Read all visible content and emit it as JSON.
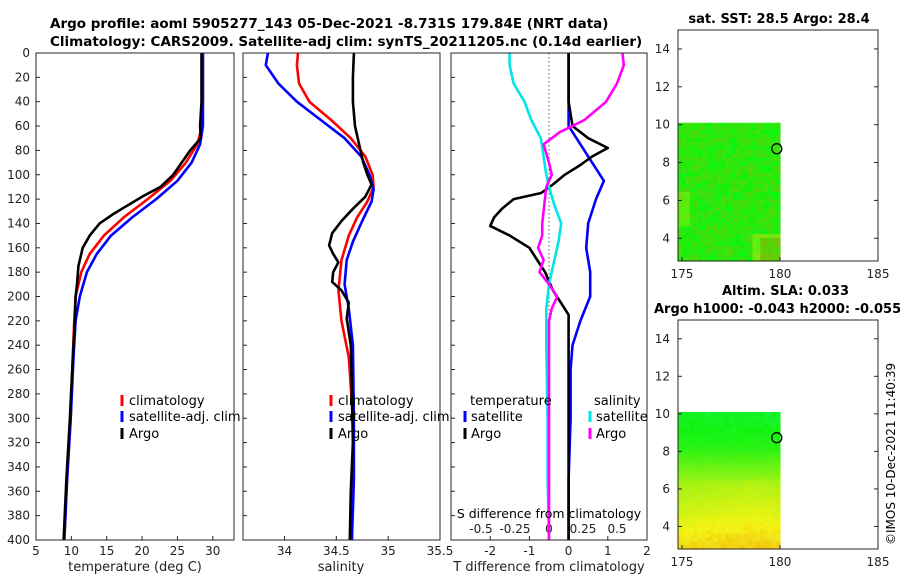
{
  "header": {
    "title_line1": "Argo profile: aoml 5905277_143 05-Dec-2021 -8.731S 179.84E (NRT data)",
    "title_line2": "Climatology: CARS2009. Satellite-adj clim: synTS_20211205.nc (0.14d earlier)"
  },
  "timestamp": "©IMOS 10-Dec-2021 11:40:39",
  "colors": {
    "climatology": "#ff0000",
    "satellite": "#0000ff",
    "argo": "#000000",
    "sal_satellite": "#00e5e5",
    "sal_argo": "#ff00ff"
  },
  "chart_data": [
    {
      "id": "temperature",
      "type": "line",
      "xlabel": "temperature (deg C)",
      "ylabel": "",
      "xlim": [
        5,
        33
      ],
      "ylim": [
        0,
        400
      ],
      "y_reversed": true,
      "xticks": [
        5,
        10,
        15,
        20,
        25,
        30
      ],
      "yticks": [
        0,
        20,
        40,
        60,
        80,
        100,
        120,
        140,
        160,
        180,
        200,
        220,
        240,
        260,
        280,
        300,
        320,
        340,
        360,
        380,
        400
      ],
      "legend": [
        "climatology",
        "satellite-adj. clim",
        "Argo"
      ],
      "series": [
        {
          "name": "climatology",
          "color": "#ff0000",
          "points": [
            [
              28.6,
              0
            ],
            [
              28.6,
              20
            ],
            [
              28.6,
              40
            ],
            [
              28.5,
              60
            ],
            [
              27.8,
              75
            ],
            [
              26.2,
              90
            ],
            [
              24.0,
              105
            ],
            [
              20.8,
              120
            ],
            [
              17.4,
              135
            ],
            [
              14.6,
              150
            ],
            [
              12.6,
              165
            ],
            [
              11.4,
              180
            ],
            [
              10.6,
              200
            ],
            [
              10.4,
              220
            ],
            [
              10.2,
              250
            ],
            [
              9.9,
              300
            ],
            [
              9.4,
              350
            ],
            [
              9.0,
              400
            ]
          ]
        },
        {
          "name": "satellite-adj. clim",
          "color": "#0000ff",
          "points": [
            [
              28.6,
              0
            ],
            [
              28.6,
              20
            ],
            [
              28.6,
              40
            ],
            [
              28.6,
              60
            ],
            [
              28.2,
              75
            ],
            [
              27.0,
              90
            ],
            [
              25.0,
              105
            ],
            [
              22.0,
              120
            ],
            [
              18.6,
              135
            ],
            [
              15.6,
              150
            ],
            [
              13.6,
              165
            ],
            [
              12.2,
              180
            ],
            [
              11.2,
              200
            ],
            [
              10.6,
              220
            ],
            [
              10.3,
              250
            ],
            [
              9.9,
              300
            ],
            [
              9.4,
              350
            ],
            [
              9.0,
              400
            ]
          ]
        },
        {
          "name": "Argo",
          "color": "#000000",
          "points": [
            [
              28.4,
              0
            ],
            [
              28.4,
              20
            ],
            [
              28.4,
              40
            ],
            [
              28.2,
              60
            ],
            [
              28.3,
              70
            ],
            [
              26.8,
              80
            ],
            [
              25.6,
              90
            ],
            [
              24.4,
              100
            ],
            [
              22.6,
              110
            ],
            [
              20.0,
              118
            ],
            [
              18.0,
              125
            ],
            [
              16.0,
              132
            ],
            [
              14.0,
              140
            ],
            [
              12.6,
              150
            ],
            [
              11.6,
              160
            ],
            [
              11.0,
              175
            ],
            [
              10.8,
              190
            ],
            [
              10.6,
              200
            ],
            [
              10.5,
              220
            ],
            [
              10.2,
              250
            ],
            [
              9.8,
              300
            ],
            [
              9.3,
              350
            ],
            [
              8.9,
              400
            ]
          ]
        }
      ]
    },
    {
      "id": "salinity",
      "type": "line",
      "xlabel": "salinity",
      "ylabel": "",
      "xlim": [
        33.6,
        35.5
      ],
      "ylim": [
        0,
        400
      ],
      "y_reversed": true,
      "xticks": [
        34,
        34.5,
        35,
        35.5
      ],
      "xtick_labels": [
        "34",
        "34.5",
        "35",
        "35.5"
      ],
      "legend": [
        "climatology",
        "satellite-adj. clim",
        "Argo"
      ],
      "series": [
        {
          "name": "climatology",
          "color": "#ff0000",
          "points": [
            [
              34.13,
              0
            ],
            [
              34.12,
              10
            ],
            [
              34.14,
              25
            ],
            [
              34.24,
              40
            ],
            [
              34.45,
              55
            ],
            [
              34.64,
              70
            ],
            [
              34.78,
              85
            ],
            [
              34.85,
              100
            ],
            [
              34.86,
              110
            ],
            [
              34.8,
              122
            ],
            [
              34.7,
              135
            ],
            [
              34.62,
              150
            ],
            [
              34.55,
              170
            ],
            [
              34.52,
              195
            ],
            [
              34.55,
              220
            ],
            [
              34.62,
              250
            ],
            [
              34.66,
              300
            ],
            [
              34.66,
              350
            ],
            [
              34.65,
              400
            ]
          ]
        },
        {
          "name": "satellite-adj. clim",
          "color": "#0000ff",
          "points": [
            [
              33.84,
              0
            ],
            [
              33.82,
              10
            ],
            [
              33.94,
              25
            ],
            [
              34.12,
              40
            ],
            [
              34.35,
              55
            ],
            [
              34.58,
              70
            ],
            [
              34.74,
              85
            ],
            [
              34.82,
              100
            ],
            [
              34.86,
              112
            ],
            [
              34.84,
              122
            ],
            [
              34.75,
              138
            ],
            [
              34.66,
              155
            ],
            [
              34.6,
              170
            ],
            [
              34.58,
              190
            ],
            [
              34.62,
              210
            ],
            [
              34.66,
              240
            ],
            [
              34.67,
              300
            ],
            [
              34.67,
              350
            ],
            [
              34.65,
              400
            ]
          ]
        },
        {
          "name": "Argo",
          "color": "#000000",
          "points": [
            [
              34.67,
              0
            ],
            [
              34.66,
              20
            ],
            [
              34.66,
              40
            ],
            [
              34.68,
              60
            ],
            [
              34.72,
              75
            ],
            [
              34.76,
              90
            ],
            [
              34.8,
              100
            ],
            [
              34.84,
              108
            ],
            [
              34.78,
              118
            ],
            [
              34.66,
              128
            ],
            [
              34.55,
              138
            ],
            [
              34.46,
              148
            ],
            [
              34.43,
              158
            ],
            [
              34.47,
              165
            ],
            [
              34.52,
              172
            ],
            [
              34.47,
              180
            ],
            [
              34.46,
              188
            ],
            [
              34.55,
              195
            ],
            [
              34.62,
              205
            ],
            [
              34.6,
              218
            ],
            [
              34.64,
              240
            ],
            [
              34.65,
              280
            ],
            [
              34.66,
              320
            ],
            [
              34.64,
              360
            ],
            [
              34.63,
              400
            ]
          ]
        }
      ]
    },
    {
      "id": "difference",
      "type": "line",
      "xlabel": "T difference from climatology",
      "title_bottom": "S difference from climatology",
      "xlim": [
        -3,
        2
      ],
      "ylim": [
        0,
        400
      ],
      "y_reversed": true,
      "xticks": [
        -2,
        -1,
        0,
        1,
        2
      ],
      "xtick_labels": [
        "-2",
        "-1",
        "0",
        "1",
        "2"
      ],
      "sticks": [
        -0.5,
        -0.25,
        0,
        0.25,
        0.5
      ],
      "stick_labels": [
        "-0.5",
        "-0.25",
        "0",
        "0.25",
        "0.5"
      ],
      "legend_titles": [
        "temperature",
        "salinity"
      ],
      "legend": [
        "satellite",
        "Argo",
        "satellite",
        "Argo"
      ],
      "series": [
        {
          "name": "T satellite",
          "color": "#0000ff",
          "points": [
            [
              0.0,
              0
            ],
            [
              0.0,
              40
            ],
            [
              0.0,
              60
            ],
            [
              0.3,
              75
            ],
            [
              0.6,
              90
            ],
            [
              0.9,
              105
            ],
            [
              0.7,
              120
            ],
            [
              0.5,
              140
            ],
            [
              0.45,
              160
            ],
            [
              0.55,
              180
            ],
            [
              0.55,
              200
            ],
            [
              0.3,
              220
            ],
            [
              0.1,
              240
            ],
            [
              0.05,
              260
            ],
            [
              0.05,
              300
            ],
            [
              0.0,
              350
            ],
            [
              0.0,
              400
            ]
          ]
        },
        {
          "name": "T Argo",
          "color": "#000000",
          "points": [
            [
              0.0,
              0
            ],
            [
              0.0,
              40
            ],
            [
              0.1,
              60
            ],
            [
              0.5,
              70
            ],
            [
              1.0,
              78
            ],
            [
              0.6,
              85
            ],
            [
              0.3,
              92
            ],
            [
              -0.1,
              100
            ],
            [
              -0.4,
              108
            ],
            [
              -0.7,
              115
            ],
            [
              -1.4,
              120
            ],
            [
              -1.7,
              128
            ],
            [
              -1.9,
              135
            ],
            [
              -2.0,
              142
            ],
            [
              -1.5,
              150
            ],
            [
              -1.0,
              160
            ],
            [
              -0.8,
              170
            ],
            [
              -0.6,
              180
            ],
            [
              -0.4,
              195
            ],
            [
              -0.2,
              205
            ],
            [
              0.0,
              215
            ],
            [
              0.0,
              250
            ],
            [
              0.0,
              300
            ],
            [
              0.0,
              400
            ]
          ]
        },
        {
          "name": "S satellite",
          "color": "#00e5e5",
          "points": [
            [
              -0.29,
              0
            ],
            [
              -0.29,
              10
            ],
            [
              -0.26,
              25
            ],
            [
              -0.18,
              40
            ],
            [
              -0.13,
              55
            ],
            [
              -0.06,
              70
            ],
            [
              -0.04,
              85
            ],
            [
              -0.02,
              100
            ],
            [
              0.0,
              110
            ],
            [
              0.04,
              125
            ],
            [
              0.09,
              140
            ],
            [
              0.07,
              155
            ],
            [
              0.04,
              170
            ],
            [
              0.0,
              190
            ],
            [
              -0.02,
              210
            ],
            [
              -0.02,
              240
            ],
            [
              -0.01,
              300
            ],
            [
              -0.01,
              350
            ],
            [
              0.0,
              400
            ]
          ]
        },
        {
          "name": "S Argo",
          "color": "#ff00ff",
          "points": [
            [
              0.54,
              0
            ],
            [
              0.55,
              10
            ],
            [
              0.5,
              25
            ],
            [
              0.42,
              40
            ],
            [
              0.26,
              55
            ],
            [
              0.08,
              65
            ],
            [
              -0.04,
              75
            ],
            [
              0.0,
              90
            ],
            [
              0.02,
              100
            ],
            [
              -0.02,
              110
            ],
            [
              -0.03,
              120
            ],
            [
              -0.04,
              130
            ],
            [
              -0.05,
              140
            ],
            [
              -0.05,
              150
            ],
            [
              -0.08,
              160
            ],
            [
              -0.04,
              170
            ],
            [
              -0.07,
              180
            ],
            [
              0.0,
              190
            ],
            [
              0.06,
              200
            ],
            [
              0.02,
              210
            ],
            [
              0.0,
              220
            ],
            [
              0.0,
              240
            ],
            [
              0.0,
              300
            ],
            [
              0.0,
              350
            ],
            [
              0.0,
              400
            ]
          ]
        }
      ]
    },
    {
      "id": "sst-map",
      "type": "heatmap",
      "title": "sat. SST: 28.5 Argo: 28.4",
      "xlim": [
        174.8,
        185
      ],
      "ylim": [
        2.8,
        15
      ],
      "xticks": [
        175,
        180,
        185
      ],
      "yticks": [
        4,
        6,
        8,
        10,
        12,
        14
      ],
      "data_extent": {
        "lon": [
          174.8,
          180
        ],
        "lat": [
          2.8,
          10.1
        ]
      },
      "argo_position": {
        "lon": 179.84,
        "lat": 8.73
      }
    },
    {
      "id": "sla-map",
      "type": "heatmap",
      "title": "Altim. SLA: 0.033",
      "subtitle": "Argo h1000: -0.043 h2000: -0.055",
      "xlim": [
        174.8,
        185
      ],
      "ylim": [
        2.8,
        15
      ],
      "xticks": [
        175,
        180,
        185
      ],
      "yticks": [
        4,
        6,
        8,
        10,
        12,
        14
      ],
      "data_extent": {
        "lon": [
          174.8,
          180
        ],
        "lat": [
          2.8,
          10.1
        ]
      },
      "argo_position": {
        "lon": 179.84,
        "lat": 8.73
      }
    }
  ]
}
